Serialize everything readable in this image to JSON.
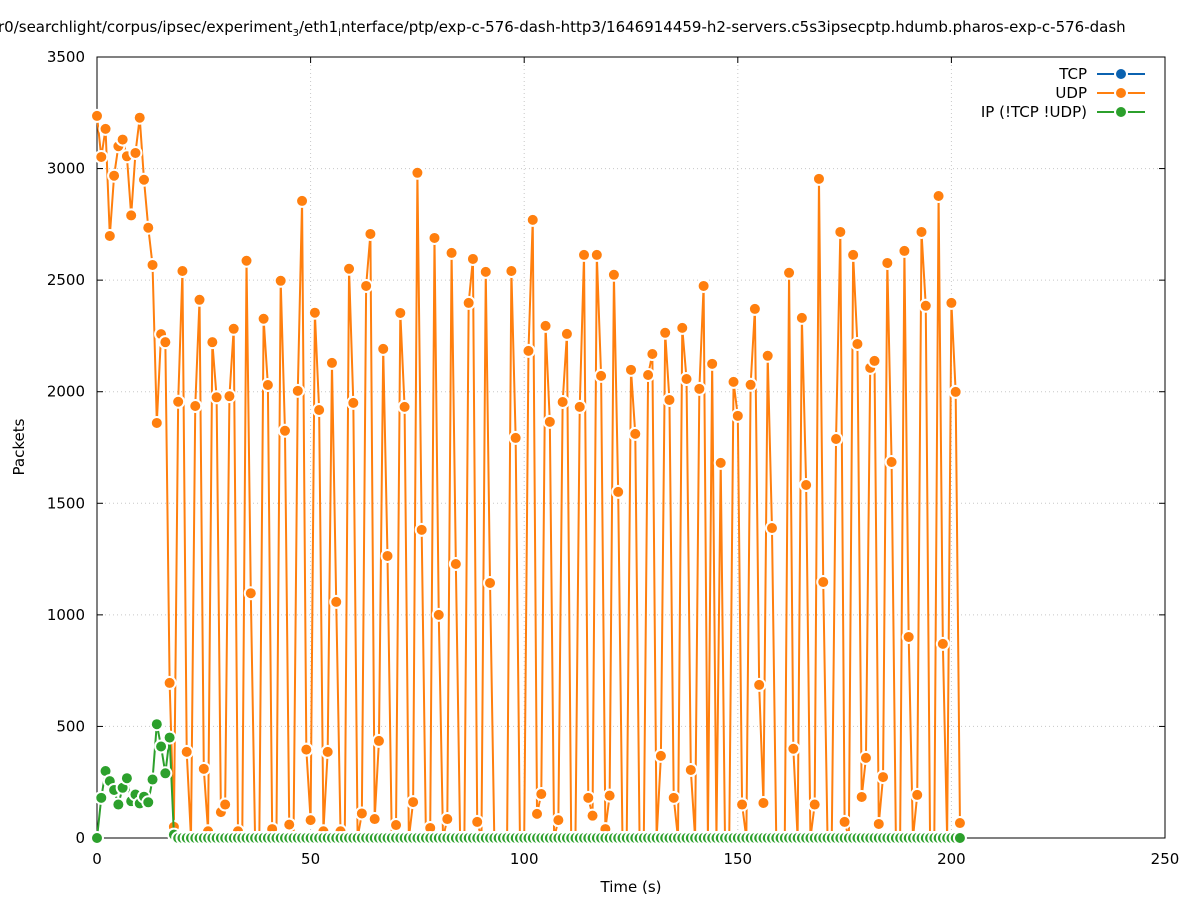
{
  "chart_data": {
    "type": "line",
    "title_parts": [
      "r0/searchlight/corpus/ipsec/experiment",
      "3",
      "/eth1",
      "i",
      "nterface/ptp/exp-c-576-dash-http3/1646914459-h2-servers.c5s3ipsecptp.hdumb.pharos-exp-c-576-dash"
    ],
    "xlabel": "Time (s)",
    "ylabel": "Packets",
    "xlim": [
      0,
      250
    ],
    "ylim": [
      0,
      3500
    ],
    "xticks": [
      0,
      50,
      100,
      150,
      200,
      250
    ],
    "yticks": [
      0,
      500,
      1000,
      1500,
      2000,
      2500,
      3000,
      3500
    ],
    "grid": true,
    "legend_placement": "top-right",
    "series": [
      {
        "name": "TCP",
        "color": "#0b62b0",
        "x": [],
        "values": []
      },
      {
        "name": "UDP",
        "color": "#ff7f0e",
        "x_start": 0,
        "x_step": 1,
        "values": [
          3236,
          3052,
          3178,
          2698,
          2968,
          3100,
          3130,
          3055,
          2790,
          3070,
          3228,
          2950,
          2735,
          2568,
          1860,
          2258,
          2222,
          695,
          50,
          1955,
          2541,
          386,
          0,
          1936,
          2412,
          310,
          30,
          2222,
          1975,
          116,
          150,
          1980,
          2282,
          30,
          0,
          2587,
          1097,
          0,
          0,
          2327,
          2030,
          40,
          0,
          2497,
          1825,
          60,
          0,
          2004,
          2855,
          396,
          80,
          2354,
          1918,
          30,
          386,
          2129,
          1058,
          30,
          0,
          2551,
          1950,
          0,
          110,
          2474,
          2707,
          85,
          435,
          2192,
          1264,
          0,
          58,
          2353,
          1932,
          0,
          161,
          2981,
          1381,
          0,
          45,
          2689,
          1000,
          0,
          85,
          2622,
          1228,
          0,
          0,
          2398,
          2595,
          72,
          0,
          2537,
          1143,
          0,
          0,
          0,
          0,
          2541,
          1793,
          0,
          0,
          2183,
          2770,
          108,
          197,
          2295,
          1865,
          0,
          80,
          1954,
          2259,
          0,
          0,
          1932,
          2613,
          180,
          100,
          2613,
          2071,
          40,
          190,
          2524,
          1551,
          0,
          0,
          2098,
          1811,
          0,
          0,
          2075,
          2169,
          0,
          368,
          2264,
          1963,
          180,
          0,
          2286,
          2057,
          305,
          0,
          2013,
          2474,
          0,
          2125,
          0,
          1681,
          0,
          0,
          2044,
          1892,
          150,
          0,
          2031,
          2371,
          686,
          157,
          2161,
          1389,
          0,
          0,
          0,
          2533,
          400,
          0,
          2331,
          1582,
          0,
          150,
          2954,
          1147,
          0,
          0,
          1788,
          2716,
          72,
          0,
          2613,
          2214,
          184,
          359,
          2107,
          2138,
          63,
          273,
          2577,
          1685,
          0,
          0,
          2631,
          901,
          0,
          193,
          2716,
          2385,
          0,
          0,
          2877,
          870,
          0,
          2398,
          1999,
          67
        ]
      },
      {
        "name": "IP (!TCP  !UDP)",
        "color": "#2ca02c",
        "x_start": 0,
        "x_step": 1,
        "values": [
          0,
          180,
          300,
          255,
          215,
          150,
          225,
          268,
          165,
          195,
          155,
          185,
          160,
          262,
          510,
          410,
          290,
          450,
          15,
          0,
          0,
          0,
          0,
          0,
          0,
          0,
          0,
          0,
          0,
          0,
          0,
          0,
          0,
          0,
          0,
          0,
          0,
          0,
          0,
          0,
          0,
          0,
          0,
          0,
          0,
          0,
          0,
          0,
          0,
          0,
          0,
          0,
          0,
          0,
          0,
          0,
          0,
          0,
          0,
          0,
          0,
          0,
          0,
          0,
          0,
          0,
          0,
          0,
          0,
          0,
          0,
          0,
          0,
          0,
          0,
          0,
          0,
          0,
          0,
          0,
          0,
          0,
          0,
          0,
          0,
          0,
          0,
          0,
          0,
          0,
          0,
          0,
          0,
          0,
          0,
          0,
          0,
          0,
          0,
          0,
          0,
          0,
          0,
          0,
          0,
          0,
          0,
          0,
          0,
          0,
          0,
          0,
          0,
          0,
          0,
          0,
          0,
          0,
          0,
          0,
          0,
          0,
          0,
          0,
          0,
          0,
          0,
          0,
          0,
          0,
          0,
          0,
          0,
          0,
          0,
          0,
          0,
          0,
          0,
          0,
          0,
          0,
          0,
          0,
          0,
          0,
          0,
          0,
          0,
          0,
          0,
          0,
          0,
          0,
          0,
          0,
          0,
          0,
          0,
          0,
          0,
          0,
          0,
          0,
          0,
          0,
          0,
          0,
          0,
          0,
          0,
          0,
          0,
          0,
          0,
          0,
          0,
          0,
          0,
          0,
          0,
          0,
          0,
          0,
          0,
          0,
          0,
          0,
          0,
          0,
          0,
          0,
          0,
          0,
          0,
          0,
          0,
          0,
          0,
          0,
          0,
          0,
          0
        ]
      }
    ]
  }
}
